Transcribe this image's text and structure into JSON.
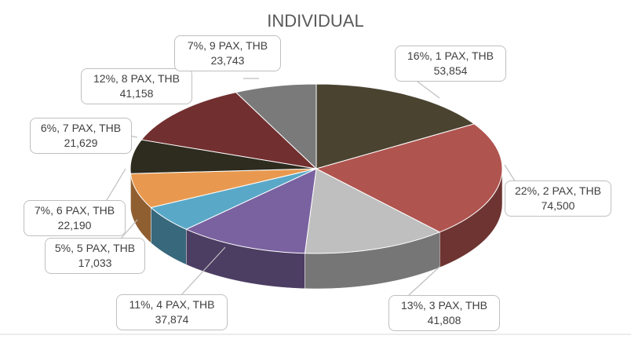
{
  "chart_data": {
    "type": "pie",
    "title": "INDIVIDUAL",
    "categories": [
      "1 PAX",
      "2 PAX",
      "3 PAX",
      "4 PAX",
      "5 PAX",
      "6 PAX",
      "7 PAX",
      "8 PAX",
      "9 PAX"
    ],
    "values": [
      53854,
      74500,
      41808,
      37874,
      17033,
      22190,
      21629,
      41158,
      23743
    ],
    "percentages": [
      16,
      22,
      13,
      11,
      5,
      7,
      6,
      12,
      7
    ],
    "currency": "THB",
    "colors": [
      "#4a4330",
      "#b0544f",
      "#bfbfbf",
      "#7a62a0",
      "#5aa8c8",
      "#e8994f",
      "#2e2b1f",
      "#722f2f",
      "#7a7a7a"
    ],
    "data_labels": [
      {
        "line1": "16%, 1 PAX, THB",
        "line2": "53,854"
      },
      {
        "line1": "22%, 2 PAX, THB",
        "line2": "74,500"
      },
      {
        "line1": "13%, 3 PAX, THB",
        "line2": "41,808"
      },
      {
        "line1": "11%, 4 PAX, THB",
        "line2": "37,874"
      },
      {
        "line1": "5%, 5 PAX, THB",
        "line2": "17,033"
      },
      {
        "line1": "7%, 6 PAX, THB",
        "line2": "22,190"
      },
      {
        "line1": "6%, 7 PAX, THB",
        "line2": "21,629"
      },
      {
        "line1": "12%, 8 PAX, THB",
        "line2": "41,158"
      },
      {
        "line1": "7%, 9 PAX, THB",
        "line2": "23,743"
      }
    ],
    "legend": "none"
  }
}
